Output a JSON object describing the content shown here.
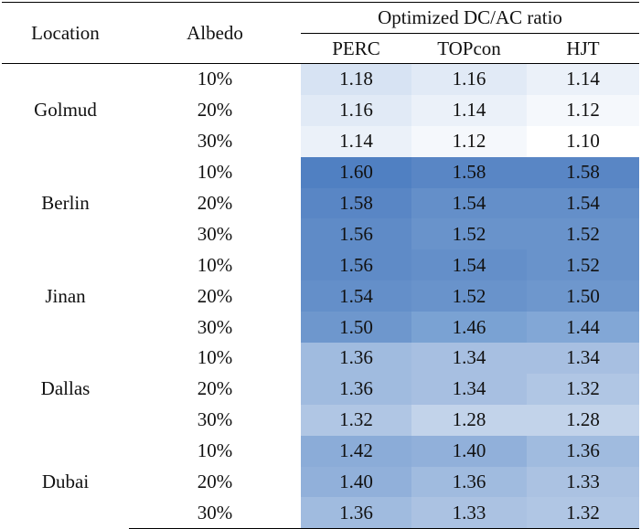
{
  "header": {
    "location": "Location",
    "albedo": "Albedo",
    "group": "Optimized DC/AC ratio",
    "perc": "PERC",
    "topcon": "TOPcon",
    "hjt": "HJT"
  },
  "cell_colors": {
    "1.10": "#ffffff",
    "1.12": "#f5f8fc",
    "1.14": "#ebf1f9",
    "1.16": "#e1eaf6",
    "1.18": "#d7e3f3",
    "1.28": "#c2d3ea",
    "1.32": "#b0c6e4",
    "1.33": "#abc2e2",
    "1.34": "#a7bfe1",
    "1.36": "#a0bbdf",
    "1.40": "#91b0da",
    "1.42": "#8bacd8",
    "1.44": "#82a7d6",
    "1.46": "#7aa2d3",
    "1.50": "#6e97cd",
    "1.52": "#6993cb",
    "1.54": "#648fc9",
    "1.56": "#5f8bc7",
    "1.58": "#5986c5",
    "1.60": "#5080c2"
  },
  "locations": [
    {
      "name": "Golmud",
      "rows": [
        {
          "albedo": "10%",
          "perc": "1.18",
          "topcon": "1.16",
          "hjt": "1.14"
        },
        {
          "albedo": "20%",
          "perc": "1.16",
          "topcon": "1.14",
          "hjt": "1.12"
        },
        {
          "albedo": "30%",
          "perc": "1.14",
          "topcon": "1.12",
          "hjt": "1.10"
        }
      ]
    },
    {
      "name": "Berlin",
      "rows": [
        {
          "albedo": "10%",
          "perc": "1.60",
          "topcon": "1.58",
          "hjt": "1.58"
        },
        {
          "albedo": "20%",
          "perc": "1.58",
          "topcon": "1.54",
          "hjt": "1.54"
        },
        {
          "albedo": "30%",
          "perc": "1.56",
          "topcon": "1.52",
          "hjt": "1.52"
        }
      ]
    },
    {
      "name": "Jinan",
      "rows": [
        {
          "albedo": "10%",
          "perc": "1.56",
          "topcon": "1.54",
          "hjt": "1.52"
        },
        {
          "albedo": "20%",
          "perc": "1.54",
          "topcon": "1.52",
          "hjt": "1.50"
        },
        {
          "albedo": "30%",
          "perc": "1.50",
          "topcon": "1.46",
          "hjt": "1.44"
        }
      ]
    },
    {
      "name": "Dallas",
      "rows": [
        {
          "albedo": "10%",
          "perc": "1.36",
          "topcon": "1.34",
          "hjt": "1.34"
        },
        {
          "albedo": "20%",
          "perc": "1.36",
          "topcon": "1.34",
          "hjt": "1.32"
        },
        {
          "albedo": "30%",
          "perc": "1.32",
          "topcon": "1.28",
          "hjt": "1.28"
        }
      ]
    },
    {
      "name": "Dubai",
      "rows": [
        {
          "albedo": "10%",
          "perc": "1.42",
          "topcon": "1.40",
          "hjt": "1.36"
        },
        {
          "albedo": "20%",
          "perc": "1.40",
          "topcon": "1.36",
          "hjt": "1.33"
        },
        {
          "albedo": "30%",
          "perc": "1.36",
          "topcon": "1.33",
          "hjt": "1.32"
        }
      ]
    }
  ]
}
